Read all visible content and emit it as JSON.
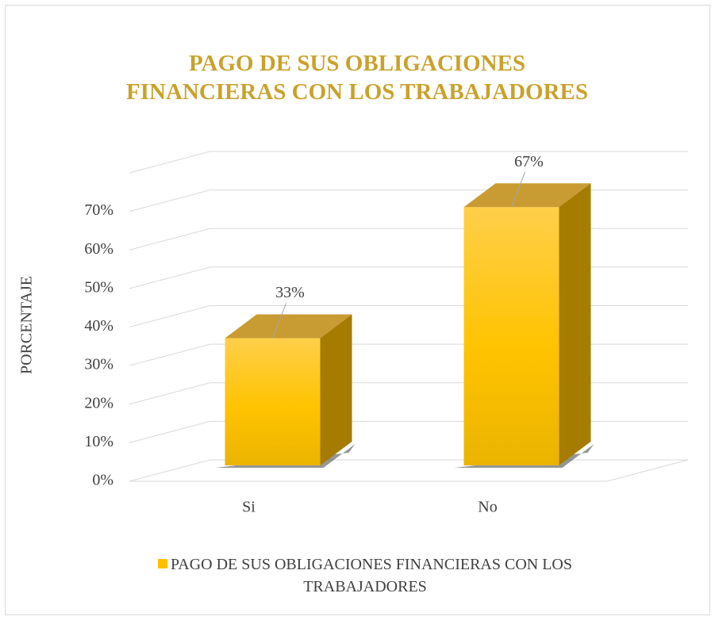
{
  "chart_data": {
    "type": "bar3d",
    "title": "PAGO DE SUS OBLIGACIONES FINANCIERAS CON LOS TRABAJADORES",
    "y_label": "PORCENTAJE",
    "categories": [
      "Si",
      "No"
    ],
    "series": [
      {
        "name": "PAGO DE SUS OBLIGACIONES FINANCIERAS CON LOS TRABAJADORES",
        "color": "#ffc000",
        "values": [
          33,
          67
        ],
        "value_labels": [
          "33%",
          "67%"
        ]
      }
    ],
    "ylim": [
      0,
      80
    ],
    "yticks": [
      {
        "value": 0,
        "label": "0%"
      },
      {
        "value": 10,
        "label": "10%"
      },
      {
        "value": 20,
        "label": "20%"
      },
      {
        "value": 30,
        "label": "30%"
      },
      {
        "value": 40,
        "label": "40%"
      },
      {
        "value": 50,
        "label": "50%"
      },
      {
        "value": 60,
        "label": "60%"
      },
      {
        "value": 70,
        "label": "70%"
      }
    ],
    "grid": true,
    "legend": "bottom"
  }
}
